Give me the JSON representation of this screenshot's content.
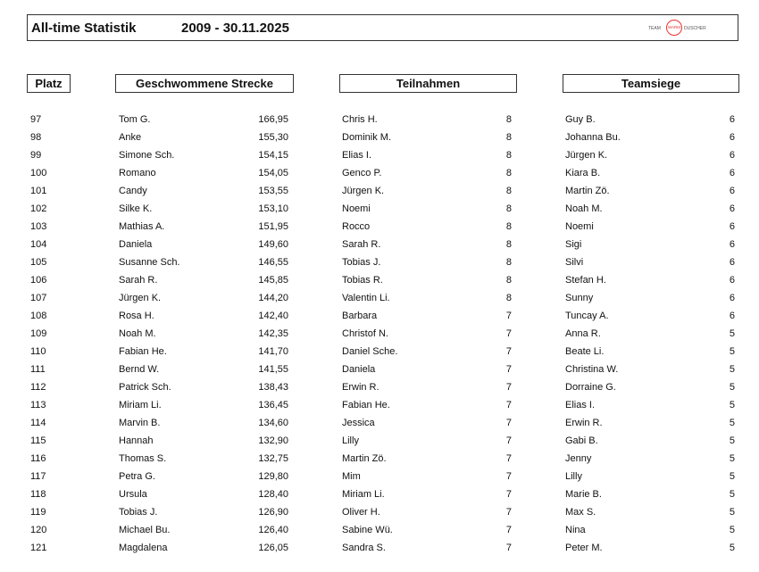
{
  "header": {
    "title": "All-time Statistik",
    "date_range": "2009 - 30.11.2025",
    "logo": {
      "left": "TEAM",
      "ring": "WARM",
      "right": "DUSCHER",
      "accent_color": "#e33333"
    }
  },
  "columns": {
    "platz": "Platz",
    "strecke": "Geschwommene Strecke",
    "teilnahmen": "Teilnahmen",
    "teamsiege": "Teamsiege"
  },
  "rows": [
    {
      "platz": "97",
      "strecke_name": "Tom G.",
      "strecke": "166,95",
      "teilnahmen_name": "Chris H.",
      "teilnahmen": "8",
      "teamsiege_name": "Guy B.",
      "teamsiege": "6"
    },
    {
      "platz": "98",
      "strecke_name": "Anke",
      "strecke": "155,30",
      "teilnahmen_name": "Dominik M.",
      "teilnahmen": "8",
      "teamsiege_name": "Johanna Bu.",
      "teamsiege": "6"
    },
    {
      "platz": "99",
      "strecke_name": "Simone Sch.",
      "strecke": "154,15",
      "teilnahmen_name": "Elias I.",
      "teilnahmen": "8",
      "teamsiege_name": "Jürgen K.",
      "teamsiege": "6"
    },
    {
      "platz": "100",
      "strecke_name": "Romano",
      "strecke": "154,05",
      "teilnahmen_name": "Genco P.",
      "teilnahmen": "8",
      "teamsiege_name": "Kiara B.",
      "teamsiege": "6"
    },
    {
      "platz": "101",
      "strecke_name": "Candy",
      "strecke": "153,55",
      "teilnahmen_name": "Jürgen K.",
      "teilnahmen": "8",
      "teamsiege_name": "Martin Zö.",
      "teamsiege": "6"
    },
    {
      "platz": "102",
      "strecke_name": "Silke K.",
      "strecke": "153,10",
      "teilnahmen_name": "Noemi",
      "teilnahmen": "8",
      "teamsiege_name": "Noah M.",
      "teamsiege": "6"
    },
    {
      "platz": "103",
      "strecke_name": "Mathias A.",
      "strecke": "151,95",
      "teilnahmen_name": "Rocco",
      "teilnahmen": "8",
      "teamsiege_name": "Noemi",
      "teamsiege": "6"
    },
    {
      "platz": "104",
      "strecke_name": "Daniela",
      "strecke": "149,60",
      "teilnahmen_name": "Sarah R.",
      "teilnahmen": "8",
      "teamsiege_name": "Sigi",
      "teamsiege": "6"
    },
    {
      "platz": "105",
      "strecke_name": "Susanne Sch.",
      "strecke": "146,55",
      "teilnahmen_name": "Tobias J.",
      "teilnahmen": "8",
      "teamsiege_name": "Silvi",
      "teamsiege": "6"
    },
    {
      "platz": "106",
      "strecke_name": "Sarah R.",
      "strecke": "145,85",
      "teilnahmen_name": "Tobias R.",
      "teilnahmen": "8",
      "teamsiege_name": "Stefan H.",
      "teamsiege": "6"
    },
    {
      "platz": "107",
      "strecke_name": "Jürgen K.",
      "strecke": "144,20",
      "teilnahmen_name": "Valentin Li.",
      "teilnahmen": "8",
      "teamsiege_name": "Sunny",
      "teamsiege": "6"
    },
    {
      "platz": "108",
      "strecke_name": "Rosa H.",
      "strecke": "142,40",
      "teilnahmen_name": "Barbara",
      "teilnahmen": "7",
      "teamsiege_name": "Tuncay A.",
      "teamsiege": "6"
    },
    {
      "platz": "109",
      "strecke_name": "Noah M.",
      "strecke": "142,35",
      "teilnahmen_name": "Christof N.",
      "teilnahmen": "7",
      "teamsiege_name": "Anna R.",
      "teamsiege": "5"
    },
    {
      "platz": "110",
      "strecke_name": "Fabian He.",
      "strecke": "141,70",
      "teilnahmen_name": "Daniel Sche.",
      "teilnahmen": "7",
      "teamsiege_name": "Beate Li.",
      "teamsiege": "5"
    },
    {
      "platz": "111",
      "strecke_name": "Bernd W.",
      "strecke": "141,55",
      "teilnahmen_name": "Daniela",
      "teilnahmen": "7",
      "teamsiege_name": "Christina W.",
      "teamsiege": "5"
    },
    {
      "platz": "112",
      "strecke_name": "Patrick Sch.",
      "strecke": "138,43",
      "teilnahmen_name": "Erwin R.",
      "teilnahmen": "7",
      "teamsiege_name": "Dorraine G.",
      "teamsiege": "5"
    },
    {
      "platz": "113",
      "strecke_name": "Miriam Li.",
      "strecke": "136,45",
      "teilnahmen_name": "Fabian He.",
      "teilnahmen": "7",
      "teamsiege_name": "Elias I.",
      "teamsiege": "5"
    },
    {
      "platz": "114",
      "strecke_name": "Marvin B.",
      "strecke": "134,60",
      "teilnahmen_name": "Jessica",
      "teilnahmen": "7",
      "teamsiege_name": "Erwin R.",
      "teamsiege": "5"
    },
    {
      "platz": "115",
      "strecke_name": "Hannah",
      "strecke": "132,90",
      "teilnahmen_name": "Lilly",
      "teilnahmen": "7",
      "teamsiege_name": "Gabi B.",
      "teamsiege": "5"
    },
    {
      "platz": "116",
      "strecke_name": "Thomas S.",
      "strecke": "132,75",
      "teilnahmen_name": "Martin Zö.",
      "teilnahmen": "7",
      "teamsiege_name": "Jenny",
      "teamsiege": "5"
    },
    {
      "platz": "117",
      "strecke_name": "Petra G.",
      "strecke": "129,80",
      "teilnahmen_name": "Mim",
      "teilnahmen": "7",
      "teamsiege_name": "Lilly",
      "teamsiege": "5"
    },
    {
      "platz": "118",
      "strecke_name": "Ursula",
      "strecke": "128,40",
      "teilnahmen_name": "Miriam Li.",
      "teilnahmen": "7",
      "teamsiege_name": "Marie B.",
      "teamsiege": "5"
    },
    {
      "platz": "119",
      "strecke_name": "Tobias J.",
      "strecke": "126,90",
      "teilnahmen_name": "Oliver H.",
      "teilnahmen": "7",
      "teamsiege_name": "Max S.",
      "teamsiege": "5"
    },
    {
      "platz": "120",
      "strecke_name": "Michael Bu.",
      "strecke": "126,40",
      "teilnahmen_name": "Sabine Wü.",
      "teilnahmen": "7",
      "teamsiege_name": "Nina",
      "teamsiege": "5"
    },
    {
      "platz": "121",
      "strecke_name": "Magdalena",
      "strecke": "126,05",
      "teilnahmen_name": "Sandra S.",
      "teilnahmen": "7",
      "teamsiege_name": "Peter M.",
      "teamsiege": "5"
    }
  ]
}
